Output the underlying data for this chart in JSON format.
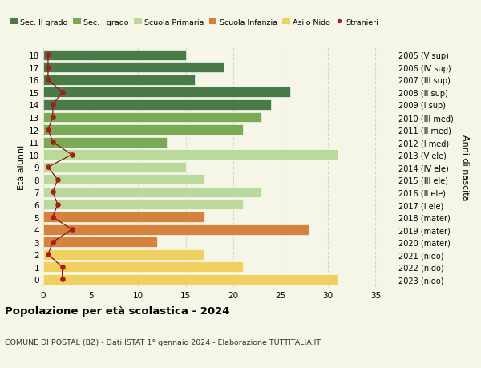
{
  "ages": [
    18,
    17,
    16,
    15,
    14,
    13,
    12,
    11,
    10,
    9,
    8,
    7,
    6,
    5,
    4,
    3,
    2,
    1,
    0
  ],
  "right_labels": [
    "2005 (V sup)",
    "2006 (IV sup)",
    "2007 (III sup)",
    "2008 (II sup)",
    "2009 (I sup)",
    "2010 (III med)",
    "2011 (II med)",
    "2012 (I med)",
    "2013 (V ele)",
    "2014 (IV ele)",
    "2015 (III ele)",
    "2016 (II ele)",
    "2017 (I ele)",
    "2018 (mater)",
    "2019 (mater)",
    "2020 (mater)",
    "2021 (nido)",
    "2022 (nido)",
    "2023 (nido)"
  ],
  "bar_values": [
    15,
    19,
    16,
    26,
    24,
    23,
    21,
    13,
    31,
    15,
    17,
    23,
    21,
    17,
    28,
    12,
    17,
    21,
    31
  ],
  "bar_colors": [
    "#4a7a48",
    "#4a7a48",
    "#4a7a48",
    "#4a7a48",
    "#4a7a48",
    "#7aaa55",
    "#7aaa55",
    "#7aaa55",
    "#bbd99a",
    "#bbd99a",
    "#bbd99a",
    "#bbd99a",
    "#bbd99a",
    "#d4823c",
    "#d4823c",
    "#d4823c",
    "#f0d060",
    "#f0d060",
    "#f0d060"
  ],
  "stranieri_values": [
    0.5,
    0.5,
    0.5,
    2.0,
    1.0,
    1.0,
    0.5,
    1.0,
    3.0,
    0.5,
    1.5,
    1.0,
    1.5,
    1.0,
    3.0,
    1.0,
    0.5,
    2.0,
    2.0
  ],
  "legend_labels": [
    "Sec. II grado",
    "Sec. I grado",
    "Scuola Primaria",
    "Scuola Infanzia",
    "Asilo Nido",
    "Stranieri"
  ],
  "legend_colors": [
    "#4a7a48",
    "#7aaa55",
    "#bbd99a",
    "#d4823c",
    "#f0d060",
    "#aa1a1a"
  ],
  "title": "Popolazione per età scolastica - 2024",
  "subtitle": "COMUNE DI POSTAL (BZ) - Dati ISTAT 1° gennaio 2024 - Elaborazione TUTTITALIA.IT",
  "ylabel_left": "Età alunni",
  "ylabel_right": "Anni di nascita",
  "xlim": [
    0,
    37
  ],
  "xticks": [
    0,
    5,
    10,
    15,
    20,
    25,
    30,
    35
  ],
  "bg_color": "#f5f5e8",
  "grid_color": "#d8d8c8"
}
